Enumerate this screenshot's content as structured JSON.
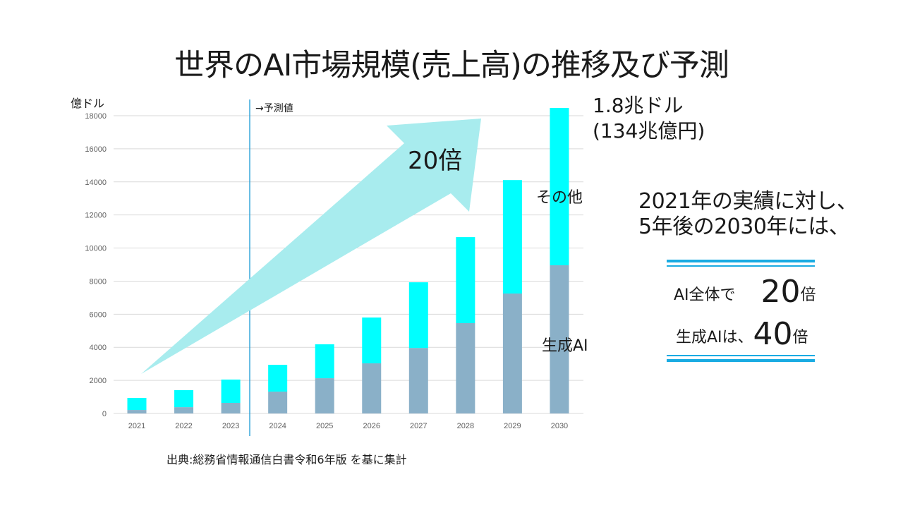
{
  "title": "世界のAI市場規模(売上高)の推移及び予測",
  "chart_data": {
    "type": "bar",
    "stacked": true,
    "title": "世界のAI市場規模(売上高)の推移及び予測",
    "ylabel": "億ドル",
    "xlabel": "",
    "ylim": [
      0,
      18000
    ],
    "yticks": [
      0,
      2000,
      4000,
      6000,
      8000,
      10000,
      12000,
      14000,
      16000,
      18000
    ],
    "grid": true,
    "categories": [
      "2021",
      "2022",
      "2023",
      "2024",
      "2025",
      "2026",
      "2027",
      "2028",
      "2029",
      "2030"
    ],
    "series": [
      {
        "name": "生成AI",
        "color": "#8ab0c8",
        "values": [
          210,
          380,
          640,
          1320,
          2130,
          3030,
          3960,
          5460,
          7250,
          8960
        ]
      },
      {
        "name": "その他",
        "color": "#00ffff",
        "values": [
          730,
          1030,
          1410,
          1620,
          2050,
          2770,
          3970,
          5200,
          6860,
          9510
        ]
      }
    ],
    "totals": [
      940,
      1410,
      2050,
      2940,
      4180,
      5800,
      7930,
      10660,
      14110,
      18470
    ],
    "forecast_marker": {
      "after_category": "2023",
      "label": "→予測値"
    },
    "annotations": {
      "total_2030": [
        "1.8兆ドル",
        "(134兆億円)"
      ],
      "growth_arrow": "20倍",
      "series_label_other": "その他",
      "series_label_gen": "生成AI"
    }
  },
  "summary": {
    "line1": "2021年の実績に対し、",
    "line2": "5年後の2030年には、",
    "ai_total_prefix": "AI全体で",
    "ai_total_num": "20",
    "ai_total_suffix": "倍",
    "gen_ai_prefix": "生成AIは、",
    "gen_ai_num": "40",
    "gen_ai_suffix": "倍"
  },
  "source": "出典:総務省情報通信白書令和6年版  を基に集計",
  "colors": {
    "accent_rule": "#1aabe2",
    "arrow": "#a8ecee",
    "forecast_line": "#1a9ad6"
  }
}
